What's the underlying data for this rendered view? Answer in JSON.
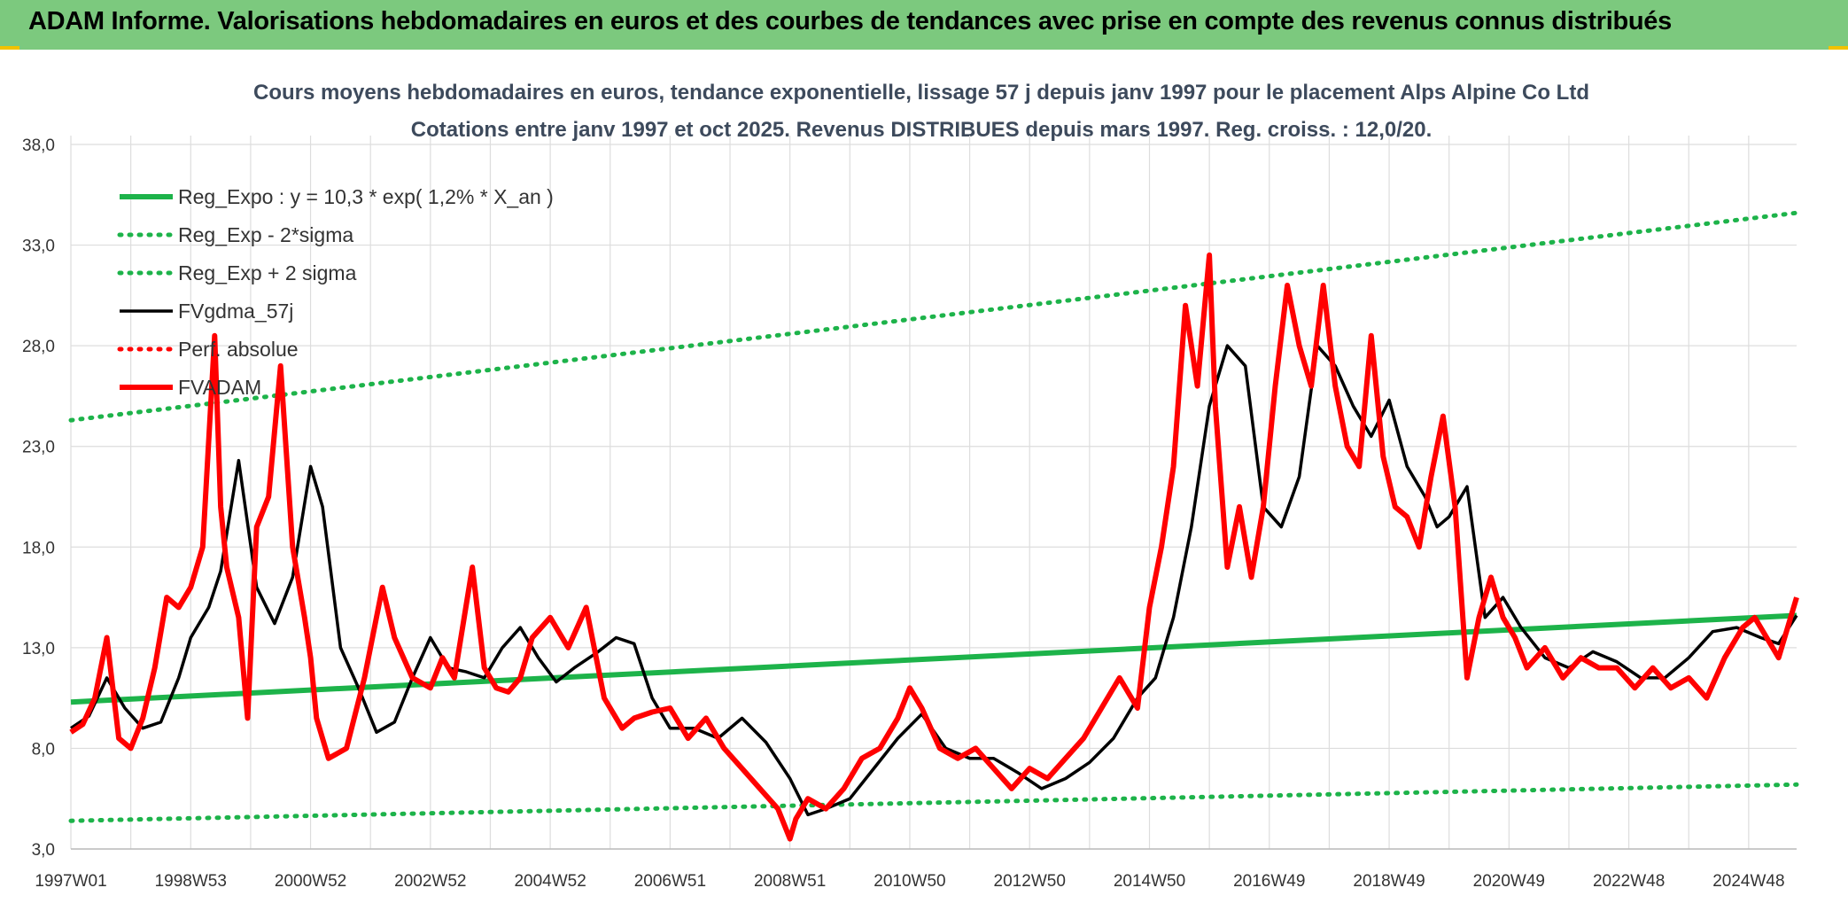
{
  "banner": {
    "title": "ADAM Informe. Valorisations hebdomadaires en euros et des courbes de tendances avec prise en compte des revenus connus distribués"
  },
  "colors": {
    "banner_bg": "#7cc97e",
    "reg_expo": "#1db34a",
    "sigma_lines": "#1db34a",
    "fvgdma": "#000000",
    "perf": "#ff0000",
    "fvadam": "#ff0000",
    "grid": "#dddddd"
  },
  "chart_data": {
    "type": "line",
    "title": "Cours moyens hebdomadaires en euros, tendance exponentielle, lissage 57 j depuis janv 1997 pour le placement Alps Alpine Co Ltd",
    "subtitle": "Cotations entre janv 1997 et oct 2025. Revenus DISTRIBUES depuis mars 1997. Reg. croiss. : 12,0/20.",
    "xlabel": "",
    "ylabel": "",
    "x_range": [
      1997.0,
      2025.8
    ],
    "ylim": [
      3.0,
      40.0
    ],
    "y_ticks": [
      "3,0",
      "8,0",
      "13,0",
      "18,0",
      "23,0",
      "28,0",
      "33,0",
      "38,0"
    ],
    "y_tick_values": [
      3,
      8,
      13,
      18,
      23,
      28,
      33,
      38
    ],
    "x_ticks": [
      {
        "label": "1997W01",
        "x": 1997.0
      },
      {
        "label": "1998W53",
        "x": 1999.0
      },
      {
        "label": "2000W52",
        "x": 2001.0
      },
      {
        "label": "2002W52",
        "x": 2003.0
      },
      {
        "label": "2004W52",
        "x": 2005.0
      },
      {
        "label": "2006W51",
        "x": 2007.0
      },
      {
        "label": "2008W51",
        "x": 2009.0
      },
      {
        "label": "2010W50",
        "x": 2011.0
      },
      {
        "label": "2012W50",
        "x": 2013.0
      },
      {
        "label": "2014W50",
        "x": 2015.0
      },
      {
        "label": "2016W49",
        "x": 2017.0
      },
      {
        "label": "2018W49",
        "x": 2019.0
      },
      {
        "label": "2020W49",
        "x": 2021.0
      },
      {
        "label": "2022W48",
        "x": 2023.0
      },
      {
        "label": "2024W48",
        "x": 2025.0
      }
    ],
    "grid": true,
    "legend_position": "top-left",
    "series": [
      {
        "name": "Reg_Expo : y = 10,3 * exp( 1,2% *  X_an )",
        "style": "solid-thick",
        "color": "#1db34a",
        "x": [
          1997.0,
          2025.8
        ],
        "y": [
          10.3,
          14.6
        ]
      },
      {
        "name": "Reg_Exp - 2*sigma",
        "style": "dotted",
        "color": "#1db34a",
        "x": [
          1997.0,
          2025.8
        ],
        "y": [
          4.4,
          6.2
        ]
      },
      {
        "name": "Reg_Exp + 2 sigma",
        "style": "dotted",
        "color": "#1db34a",
        "x": [
          1997.0,
          2025.8
        ],
        "y": [
          24.3,
          34.6
        ]
      },
      {
        "name": "FVgdma_57j",
        "style": "solid",
        "color": "#000000",
        "x": [
          1997.0,
          1997.3,
          1997.6,
          1997.9,
          1998.2,
          1998.5,
          1998.8,
          1999.0,
          1999.3,
          1999.5,
          1999.8,
          2000.1,
          2000.4,
          2000.7,
          2001.0,
          2001.2,
          2001.5,
          2001.8,
          2002.1,
          2002.4,
          2002.7,
          2003.0,
          2003.3,
          2003.6,
          2003.9,
          2004.2,
          2004.5,
          2004.8,
          2005.1,
          2005.4,
          2005.8,
          2006.1,
          2006.4,
          2006.7,
          2007.0,
          2007.4,
          2007.8,
          2008.2,
          2008.6,
          2009.0,
          2009.3,
          2009.6,
          2010.0,
          2010.4,
          2010.8,
          2011.2,
          2011.6,
          2012.0,
          2012.4,
          2012.8,
          2013.2,
          2013.6,
          2014.0,
          2014.4,
          2014.8,
          2015.1,
          2015.4,
          2015.7,
          2016.0,
          2016.3,
          2016.6,
          2016.9,
          2017.2,
          2017.5,
          2017.8,
          2018.1,
          2018.4,
          2018.7,
          2019.0,
          2019.3,
          2019.6,
          2019.8,
          2020.0,
          2020.3,
          2020.6,
          2020.9,
          2021.2,
          2021.6,
          2022.0,
          2022.4,
          2022.8,
          2023.2,
          2023.6,
          2024.0,
          2024.4,
          2024.8,
          2025.2,
          2025.5,
          2025.8
        ],
        "y": [
          9.0,
          9.6,
          11.5,
          10.0,
          9.0,
          9.3,
          11.5,
          13.5,
          15.0,
          16.8,
          22.3,
          16.0,
          14.2,
          16.5,
          22.0,
          20.0,
          13.0,
          11.0,
          8.8,
          9.3,
          11.5,
          13.5,
          12.0,
          11.8,
          11.5,
          13.0,
          14.0,
          12.5,
          11.3,
          12.0,
          12.8,
          13.5,
          13.2,
          10.5,
          9.0,
          9.0,
          8.5,
          9.5,
          8.3,
          6.5,
          4.7,
          5.0,
          5.5,
          7.0,
          8.5,
          9.7,
          8.0,
          7.5,
          7.5,
          6.8,
          6.0,
          6.5,
          7.3,
          8.5,
          10.5,
          11.5,
          14.5,
          19.0,
          25.0,
          28.0,
          27.0,
          20.0,
          19.0,
          21.5,
          28.0,
          27.0,
          25.0,
          23.5,
          25.3,
          22.0,
          20.5,
          19.0,
          19.5,
          21.0,
          14.5,
          15.5,
          14.0,
          12.5,
          12.0,
          12.8,
          12.3,
          11.5,
          11.5,
          12.5,
          13.8,
          14.0,
          13.5,
          13.2,
          14.6
        ]
      },
      {
        "name": "Perf. absolue",
        "style": "dotted",
        "color": "#ff0000",
        "x": [],
        "y": []
      },
      {
        "name": "FVADAM",
        "style": "solid-thick",
        "color": "#ff0000",
        "x": [
          1997.0,
          1997.2,
          1997.4,
          1997.6,
          1997.8,
          1998.0,
          1998.2,
          1998.4,
          1998.6,
          1998.8,
          1999.0,
          1999.2,
          1999.4,
          1999.5,
          1999.6,
          1999.8,
          1999.95,
          2000.1,
          2000.3,
          2000.5,
          2000.7,
          2000.9,
          2001.0,
          2001.1,
          2001.3,
          2001.6,
          2001.9,
          2002.2,
          2002.4,
          2002.7,
          2003.0,
          2003.2,
          2003.4,
          2003.7,
          2003.9,
          2004.1,
          2004.3,
          2004.5,
          2004.7,
          2005.0,
          2005.3,
          2005.6,
          2005.9,
          2006.2,
          2006.4,
          2006.7,
          2007.0,
          2007.3,
          2007.6,
          2007.9,
          2008.2,
          2008.5,
          2008.8,
          2009.0,
          2009.1,
          2009.3,
          2009.6,
          2009.9,
          2010.2,
          2010.5,
          2010.8,
          2011.0,
          2011.2,
          2011.5,
          2011.8,
          2012.1,
          2012.4,
          2012.7,
          2013.0,
          2013.3,
          2013.6,
          2013.9,
          2014.2,
          2014.5,
          2014.8,
          2015.0,
          2015.2,
          2015.4,
          2015.6,
          2015.8,
          2016.0,
          2016.1,
          2016.3,
          2016.5,
          2016.7,
          2016.9,
          2017.1,
          2017.3,
          2017.5,
          2017.7,
          2017.9,
          2018.1,
          2018.3,
          2018.5,
          2018.7,
          2018.9,
          2019.1,
          2019.3,
          2019.5,
          2019.7,
          2019.9,
          2020.1,
          2020.3,
          2020.5,
          2020.7,
          2020.9,
          2021.1,
          2021.3,
          2021.6,
          2021.9,
          2022.2,
          2022.5,
          2022.8,
          2023.1,
          2023.4,
          2023.7,
          2024.0,
          2024.3,
          2024.6,
          2024.9,
          2025.1,
          2025.3,
          2025.5,
          2025.8
        ],
        "y": [
          8.8,
          9.2,
          10.5,
          13.5,
          8.5,
          8.0,
          9.5,
          12.0,
          15.5,
          15.0,
          16.0,
          18.0,
          28.5,
          20.0,
          17.0,
          14.5,
          9.5,
          19.0,
          20.5,
          27.0,
          18.0,
          14.5,
          12.5,
          9.5,
          7.5,
          8.0,
          11.5,
          16.0,
          13.5,
          11.5,
          11.0,
          12.5,
          11.5,
          17.0,
          12.0,
          11.0,
          10.8,
          11.5,
          13.5,
          14.5,
          13.0,
          15.0,
          10.5,
          9.0,
          9.5,
          9.8,
          10.0,
          8.5,
          9.5,
          8.0,
          7.0,
          6.0,
          5.0,
          3.5,
          4.5,
          5.5,
          5.0,
          6.0,
          7.5,
          8.0,
          9.5,
          11.0,
          10.0,
          8.0,
          7.5,
          8.0,
          7.0,
          6.0,
          7.0,
          6.5,
          7.5,
          8.5,
          10.0,
          11.5,
          10.0,
          15.0,
          18.0,
          22.0,
          30.0,
          26.0,
          32.5,
          25.0,
          17.0,
          20.0,
          16.5,
          20.0,
          26.0,
          31.0,
          28.0,
          26.0,
          31.0,
          26.0,
          23.0,
          22.0,
          28.5,
          22.5,
          20.0,
          19.5,
          18.0,
          21.5,
          24.5,
          20.0,
          11.5,
          14.5,
          16.5,
          14.5,
          13.5,
          12.0,
          13.0,
          11.5,
          12.5,
          12.0,
          12.0,
          11.0,
          12.0,
          11.0,
          11.5,
          10.5,
          12.5,
          14.0,
          14.5,
          13.5,
          12.5,
          15.5
        ]
      }
    ]
  }
}
